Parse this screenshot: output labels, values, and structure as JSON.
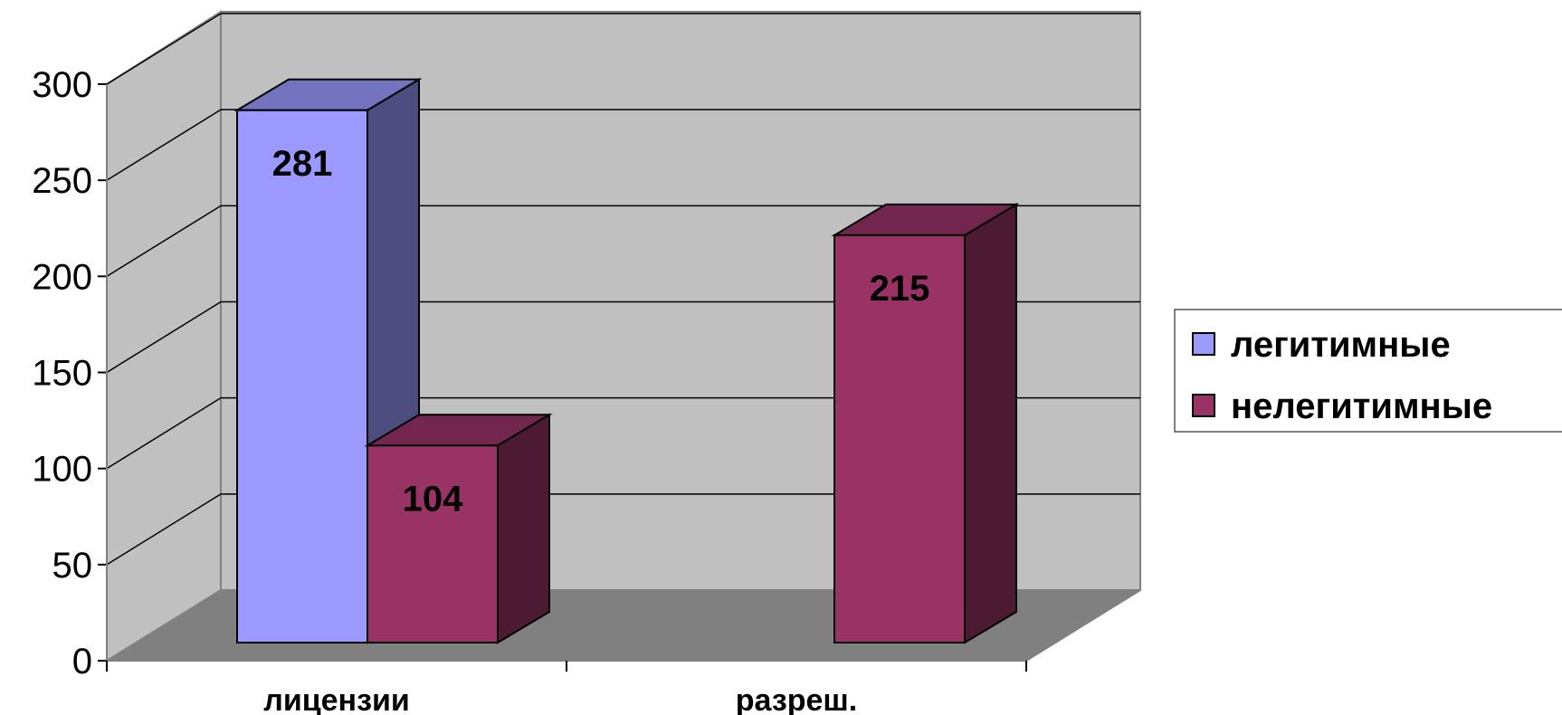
{
  "chart_data": {
    "type": "bar",
    "categories": [
      "лицензии",
      "разреш."
    ],
    "series": [
      {
        "name": "легитимные",
        "values": [
          281,
          null
        ],
        "color": "#9999ff"
      },
      {
        "name": "нелегитимные",
        "values": [
          104,
          215
        ],
        "color": "#993366"
      }
    ],
    "data_labels": [
      "281",
      "104",
      "215"
    ],
    "yticks": [
      "0",
      "50",
      "100",
      "150",
      "200",
      "250",
      "300"
    ],
    "ylim": [
      0,
      300
    ],
    "grid": true,
    "three_d": true,
    "legend_position": "right",
    "colors": {
      "back_wall": "#c0c0c0",
      "floor": "#808080",
      "side_wall": "#c0c0c0"
    }
  }
}
